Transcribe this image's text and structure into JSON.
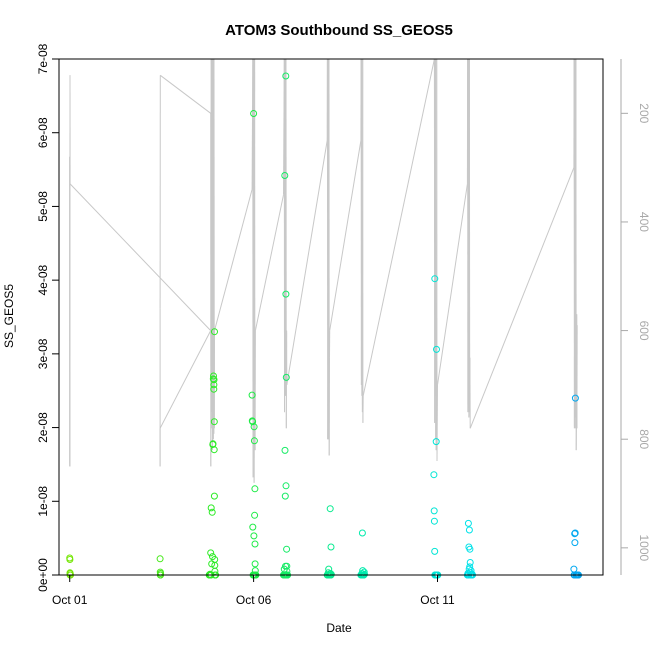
{
  "chart_data": {
    "type": "scatter",
    "title": "ATOM3 Southbound SS_GEOS5",
    "xlabel": "Date",
    "ylabel": "SS_GEOS5",
    "xlim": [
      "2016-09-30T17:00",
      "2016-10-15T12:00"
    ],
    "ylim": [
      0,
      7e-08
    ],
    "x_ticks": [
      {
        "date": "2016-10-01",
        "label": "Oct 01"
      },
      {
        "date": "2016-10-06",
        "label": "Oct 06"
      },
      {
        "date": "2016-10-11",
        "label": "Oct 11"
      }
    ],
    "y_ticks": [
      {
        "value": 0,
        "label": "0e+00"
      },
      {
        "value": 1e-08,
        "label": "1e-08"
      },
      {
        "value": 2e-08,
        "label": "2e-08"
      },
      {
        "value": 3e-08,
        "label": "3e-08"
      },
      {
        "value": 4e-08,
        "label": "4e-08"
      },
      {
        "value": 5e-08,
        "label": "5e-08"
      },
      {
        "value": 6e-08,
        "label": "6e-08"
      },
      {
        "value": 7e-08,
        "label": "7e-08"
      }
    ],
    "right_axis": {
      "ylim": [
        1050,
        100
      ],
      "reversed": true,
      "ticks": [
        {
          "value": 200,
          "label": "200"
        },
        {
          "value": 400,
          "label": "400"
        },
        {
          "value": 600,
          "label": "600"
        },
        {
          "value": 800,
          "label": "800"
        },
        {
          "value": 1000,
          "label": "1000"
        }
      ],
      "color": "#a9a9a9"
    },
    "grid": false,
    "point_style": "open circle, colour shifts green to cyan to blue along the time axis",
    "points": [
      [
        "2016-10-01T00:00",
        2.3e-09
      ],
      [
        "2016-10-01T00:05",
        2.1e-09
      ],
      [
        "2016-10-01T00:10",
        3e-10
      ],
      [
        "2016-10-01T00:15",
        0
      ],
      [
        "2016-10-01T00:20",
        2e-10
      ],
      [
        "2016-10-01T00:30",
        0
      ],
      [
        "2016-10-03T11:00",
        2.2e-09
      ],
      [
        "2016-10-03T11:05",
        4e-10
      ],
      [
        "2016-10-03T11:10",
        0
      ],
      [
        "2016-10-03T11:15",
        0
      ],
      [
        "2016-10-03T11:20",
        2e-10
      ],
      [
        "2016-10-04T19:00",
        0
      ],
      [
        "2016-10-04T19:10",
        0
      ],
      [
        "2016-10-04T19:20",
        0
      ],
      [
        "2016-10-04T19:30",
        1e-10
      ],
      [
        "2016-10-04T19:40",
        0
      ],
      [
        "2016-10-04T19:50",
        0
      ],
      [
        "2016-10-04T20:00",
        0
      ],
      [
        "2016-10-04T20:10",
        0
      ],
      [
        "2016-10-04T20:00",
        3e-09
      ],
      [
        "2016-10-04T20:20",
        9.1e-09
      ],
      [
        "2016-10-04T20:40",
        1.5e-09
      ],
      [
        "2016-10-04T21:00",
        8.5e-09
      ],
      [
        "2016-10-04T21:10",
        2.5e-09
      ],
      [
        "2016-10-04T21:20",
        1.77e-08
      ],
      [
        "2016-10-04T21:30",
        1.78e-08
      ],
      [
        "2016-10-04T21:40",
        2.66e-08
      ],
      [
        "2016-10-04T21:50",
        2.7e-08
      ],
      [
        "2016-10-04T22:00",
        2.52e-08
      ],
      [
        "2016-10-04T22:05",
        2.58e-08
      ],
      [
        "2016-10-04T22:10",
        2.65e-08
      ],
      [
        "2016-10-04T22:15",
        1.7e-08
      ],
      [
        "2016-10-04T22:20",
        2.08e-08
      ],
      [
        "2016-10-04T22:25",
        1.07e-08
      ],
      [
        "2016-10-04T22:30",
        3.3e-08
      ],
      [
        "2016-10-04T22:35",
        2.1e-09
      ],
      [
        "2016-10-04T22:40",
        1.3e-09
      ],
      [
        "2016-10-04T22:45",
        5e-10
      ],
      [
        "2016-10-04T22:50",
        0
      ],
      [
        "2016-10-04T23:00",
        0
      ],
      [
        "2016-10-04T23:10",
        0
      ],
      [
        "2016-10-05T23:00",
        2.44e-08
      ],
      [
        "2016-10-05T23:10",
        2.09e-08
      ],
      [
        "2016-10-05T23:20",
        2.08e-08
      ],
      [
        "2016-10-05T23:30",
        6.5e-09
      ],
      [
        "2016-10-06T00:00",
        6.26e-08
      ],
      [
        "2016-10-06T00:10",
        5.3e-09
      ],
      [
        "2016-10-06T00:20",
        2.01e-08
      ],
      [
        "2016-10-06T00:30",
        1.82e-08
      ],
      [
        "2016-10-06T00:40",
        8.1e-09
      ],
      [
        "2016-10-06T00:50",
        1.17e-08
      ],
      [
        "2016-10-06T00:55",
        4.2e-09
      ],
      [
        "2016-10-06T01:00",
        1.5e-09
      ],
      [
        "2016-10-06T01:05",
        6e-10
      ],
      [
        "2016-10-05T23:40",
        0
      ],
      [
        "2016-10-05T23:50",
        0
      ],
      [
        "2016-10-06T00:05",
        0
      ],
      [
        "2016-10-06T00:15",
        0
      ],
      [
        "2016-10-06T00:25",
        0
      ],
      [
        "2016-10-06T00:35",
        0
      ],
      [
        "2016-10-06T00:45",
        0
      ],
      [
        "2016-10-06T01:10",
        0
      ],
      [
        "2016-10-06T01:20",
        0
      ],
      [
        "2016-10-06T01:30",
        0
      ],
      [
        "2016-10-06T20:00",
        8e-10
      ],
      [
        "2016-10-06T20:20",
        5.42e-08
      ],
      [
        "2016-10-06T20:30",
        1.69e-08
      ],
      [
        "2016-10-06T20:40",
        1.07e-08
      ],
      [
        "2016-10-06T20:50",
        1.2e-09
      ],
      [
        "2016-10-06T21:00",
        6.77e-08
      ],
      [
        "2016-10-06T21:05",
        3.81e-08
      ],
      [
        "2016-10-06T21:10",
        1.21e-08
      ],
      [
        "2016-10-06T21:20",
        2.68e-08
      ],
      [
        "2016-10-06T21:30",
        3.5e-09
      ],
      [
        "2016-10-06T21:40",
        1.2e-09
      ],
      [
        "2016-10-06T21:45",
        5e-10
      ],
      [
        "2016-10-06T19:30",
        0
      ],
      [
        "2016-10-06T19:45",
        0
      ],
      [
        "2016-10-06T20:05",
        0
      ],
      [
        "2016-10-06T20:15",
        0
      ],
      [
        "2016-10-06T20:25",
        0
      ],
      [
        "2016-10-06T20:35",
        0
      ],
      [
        "2016-10-06T20:45",
        0
      ],
      [
        "2016-10-06T20:55",
        0
      ],
      [
        "2016-10-06T21:15",
        0
      ],
      [
        "2016-10-06T21:25",
        0
      ],
      [
        "2016-10-06T21:35",
        0
      ],
      [
        "2016-10-06T21:50",
        0
      ],
      [
        "2016-10-06T22:00",
        0
      ],
      [
        "2016-10-06T22:10",
        0
      ],
      [
        "2016-10-08T00:00",
        0
      ],
      [
        "2016-10-08T00:15",
        0
      ],
      [
        "2016-10-08T00:30",
        0
      ],
      [
        "2016-10-08T00:45",
        3e-10
      ],
      [
        "2016-10-08T01:00",
        8e-10
      ],
      [
        "2016-10-08T01:15",
        0
      ],
      [
        "2016-10-08T01:30",
        0
      ],
      [
        "2016-10-08T01:45",
        0
      ],
      [
        "2016-10-08T02:00",
        0
      ],
      [
        "2016-10-08T02:10",
        2e-10
      ],
      [
        "2016-10-08T02:20",
        0
      ],
      [
        "2016-10-08T02:30",
        0
      ],
      [
        "2016-10-08T02:40",
        1e-10
      ],
      [
        "2016-10-08T02:00",
        9e-09
      ],
      [
        "2016-10-08T02:30",
        3.8e-09
      ],
      [
        "2016-10-08T22:00",
        0
      ],
      [
        "2016-10-08T22:20",
        0
      ],
      [
        "2016-10-08T22:40",
        2e-10
      ],
      [
        "2016-10-08T23:00",
        0
      ],
      [
        "2016-10-08T23:10",
        6e-10
      ],
      [
        "2016-10-08T23:20",
        0
      ],
      [
        "2016-10-08T23:30",
        0
      ],
      [
        "2016-10-08T23:40",
        0
      ],
      [
        "2016-10-08T23:50",
        0
      ],
      [
        "2016-10-09T00:00",
        0
      ],
      [
        "2016-10-09T00:10",
        4e-10
      ],
      [
        "2016-10-09T00:20",
        1e-10
      ],
      [
        "2016-10-08T23:00",
        5.7e-09
      ],
      [
        "2016-10-10T21:40",
        1.36e-08
      ],
      [
        "2016-10-10T21:50",
        8.7e-09
      ],
      [
        "2016-10-10T22:00",
        7.3e-09
      ],
      [
        "2016-10-10T22:10",
        3.2e-09
      ],
      [
        "2016-10-10T22:15",
        4.02e-08
      ],
      [
        "2016-10-10T22:20",
        0
      ],
      [
        "2016-10-10T22:30",
        0
      ],
      [
        "2016-10-10T22:40",
        0
      ],
      [
        "2016-10-10T22:50",
        0
      ],
      [
        "2016-10-10T23:00",
        0
      ],
      [
        "2016-10-10T23:10",
        1.81e-08
      ],
      [
        "2016-10-10T23:20",
        3.06e-08
      ],
      [
        "2016-10-10T23:30",
        0
      ],
      [
        "2016-10-10T23:40",
        0
      ],
      [
        "2016-10-10T23:50",
        0
      ],
      [
        "2016-10-11T00:00",
        0
      ],
      [
        "2016-10-11T00:10",
        0
      ],
      [
        "2016-10-11T19:30",
        0
      ],
      [
        "2016-10-11T19:40",
        0
      ],
      [
        "2016-10-11T19:50",
        2e-10
      ],
      [
        "2016-10-11T20:00",
        0
      ],
      [
        "2016-10-11T20:10",
        7e-09
      ],
      [
        "2016-10-11T20:20",
        0
      ],
      [
        "2016-10-11T20:30",
        3.8e-09
      ],
      [
        "2016-10-11T20:40",
        8e-10
      ],
      [
        "2016-10-11T20:50",
        6.1e-09
      ],
      [
        "2016-10-11T21:00",
        1.1e-09
      ],
      [
        "2016-10-11T21:10",
        3.5e-09
      ],
      [
        "2016-10-11T21:20",
        1.7e-09
      ],
      [
        "2016-10-11T21:30",
        3e-10
      ],
      [
        "2016-10-11T21:40",
        0
      ],
      [
        "2016-10-11T21:50",
        6e-10
      ],
      [
        "2016-10-11T22:00",
        0
      ],
      [
        "2016-10-11T22:10",
        0
      ],
      [
        "2016-10-11T22:20",
        0
      ],
      [
        "2016-10-11T22:30",
        0
      ],
      [
        "2016-10-11T22:40",
        1e-10
      ],
      [
        "2016-10-11T22:50",
        0
      ],
      [
        "2016-10-14T17:00",
        8e-10
      ],
      [
        "2016-10-14T17:10",
        0
      ],
      [
        "2016-10-14T17:20",
        0
      ],
      [
        "2016-10-14T17:30",
        5.6e-09
      ],
      [
        "2016-10-14T17:40",
        4.4e-09
      ],
      [
        "2016-10-14T17:50",
        5.7e-09
      ],
      [
        "2016-10-14T18:00",
        2.4e-08
      ],
      [
        "2016-10-14T18:10",
        0
      ],
      [
        "2016-10-14T18:20",
        0
      ],
      [
        "2016-10-14T18:30",
        0
      ],
      [
        "2016-10-14T18:40",
        0
      ],
      [
        "2016-10-14T18:50",
        0
      ],
      [
        "2016-10-14T19:00",
        0
      ],
      [
        "2016-10-14T19:10",
        0
      ],
      [
        "2016-10-14T19:20",
        0
      ],
      [
        "2016-10-14T19:30",
        0
      ],
      [
        "2016-10-14T19:40",
        0
      ],
      [
        "2016-10-14T19:50",
        0
      ],
      [
        "2016-10-14T20:00",
        0
      ]
    ],
    "pressure_series": {
      "name": "",
      "color": "#c8c8c8",
      "points": [
        [
          "2016-10-01T00:00",
          850
        ],
        [
          "2016-10-01T00:00",
          280
        ],
        [
          "2016-10-01T00:00",
          500
        ],
        [
          "2016-10-01T00:05",
          850
        ],
        [
          "2016-10-01T00:10",
          130
        ],
        [
          "2016-10-01T00:15",
          330
        ],
        [
          "2016-10-04T20:00",
          600
        ],
        [
          "2016-10-03T11:00",
          780
        ],
        [
          "2016-10-03T11:00",
          850
        ],
        [
          "2016-10-03T11:00",
          560
        ],
        [
          "2016-10-03T11:05",
          130
        ],
        [
          "2016-10-04T20:00",
          200
        ],
        [
          "2016-10-04T20:05",
          850
        ],
        [
          "2016-10-04T20:10",
          770
        ],
        [
          "2016-10-04T20:20",
          100
        ],
        [
          "2016-10-04T20:30",
          750
        ],
        [
          "2016-10-04T20:40",
          600
        ],
        [
          "2016-10-04T20:50",
          100
        ],
        [
          "2016-10-04T21:00",
          780
        ],
        [
          "2016-10-04T21:05",
          100
        ],
        [
          "2016-10-04T21:10",
          820
        ],
        [
          "2016-10-04T21:20",
          600
        ],
        [
          "2016-10-04T21:30",
          100
        ],
        [
          "2016-10-04T21:40",
          800
        ],
        [
          "2016-10-04T21:50",
          100
        ],
        [
          "2016-10-04T22:00",
          790
        ],
        [
          "2016-10-04T22:10",
          100
        ],
        [
          "2016-10-04T22:20",
          780
        ],
        [
          "2016-10-04T22:30",
          600
        ],
        [
          "2016-10-05T23:00",
          340
        ],
        [
          "2016-10-05T23:30",
          100
        ],
        [
          "2016-10-05T23:35",
          870
        ],
        [
          "2016-10-05T23:40",
          770
        ],
        [
          "2016-10-05T23:50",
          100
        ],
        [
          "2016-10-06T00:00",
          800
        ],
        [
          "2016-10-06T00:10",
          100
        ],
        [
          "2016-10-06T00:20",
          880
        ],
        [
          "2016-10-06T00:30",
          700
        ],
        [
          "2016-10-06T00:40",
          100
        ],
        [
          "2016-10-06T00:50",
          760
        ],
        [
          "2016-10-06T01:00",
          820
        ],
        [
          "2016-10-06T01:10",
          600
        ],
        [
          "2016-10-06T19:30",
          350
        ],
        [
          "2016-10-06T20:00",
          100
        ],
        [
          "2016-10-06T20:10",
          750
        ],
        [
          "2016-10-06T20:20",
          100
        ],
        [
          "2016-10-06T20:30",
          720
        ],
        [
          "2016-10-06T20:40",
          620
        ],
        [
          "2016-10-06T20:50",
          100
        ],
        [
          "2016-10-06T21:00",
          720
        ],
        [
          "2016-10-06T21:10",
          100
        ],
        [
          "2016-10-06T21:20",
          780
        ],
        [
          "2016-10-06T21:30",
          600
        ],
        [
          "2016-10-06T21:40",
          700
        ],
        [
          "2016-10-08T00:00",
          250
        ],
        [
          "2016-10-08T00:10",
          100
        ],
        [
          "2016-10-08T00:20",
          800
        ],
        [
          "2016-10-08T00:30",
          700
        ],
        [
          "2016-10-08T00:40",
          100
        ],
        [
          "2016-10-08T00:50",
          800
        ],
        [
          "2016-10-08T01:00",
          590
        ],
        [
          "2016-10-08T01:10",
          100
        ],
        [
          "2016-10-08T01:20",
          830
        ],
        [
          "2016-10-08T01:30",
          650
        ],
        [
          "2016-10-08T01:40",
          600
        ],
        [
          "2016-10-08T22:00",
          250
        ],
        [
          "2016-10-08T22:10",
          100
        ],
        [
          "2016-10-08T22:20",
          700
        ],
        [
          "2016-10-08T22:30",
          100
        ],
        [
          "2016-10-08T22:40",
          720
        ],
        [
          "2016-10-08T22:50",
          380
        ],
        [
          "2016-10-08T23:00",
          750
        ],
        [
          "2016-10-08T23:10",
          100
        ],
        [
          "2016-10-08T23:20",
          770
        ],
        [
          "2016-10-08T23:30",
          720
        ],
        [
          "2016-10-10T22:00",
          100
        ],
        [
          "2016-10-10T22:10",
          770
        ],
        [
          "2016-10-10T22:20",
          100
        ],
        [
          "2016-10-10T22:30",
          720
        ],
        [
          "2016-10-10T22:40",
          100
        ],
        [
          "2016-10-10T22:50",
          800
        ],
        [
          "2016-10-10T23:00",
          600
        ],
        [
          "2016-10-10T23:10",
          820
        ],
        [
          "2016-10-10T23:20",
          700
        ],
        [
          "2016-10-10T23:30",
          100
        ],
        [
          "2016-10-10T23:40",
          840
        ],
        [
          "2016-10-11T00:00",
          700
        ],
        [
          "2016-10-11T19:30",
          330
        ],
        [
          "2016-10-11T19:40",
          100
        ],
        [
          "2016-10-11T19:50",
          750
        ],
        [
          "2016-10-11T20:00",
          100
        ],
        [
          "2016-10-11T20:10",
          720
        ],
        [
          "2016-10-11T20:20",
          100
        ],
        [
          "2016-10-11T20:30",
          760
        ],
        [
          "2016-10-11T20:40",
          700
        ],
        [
          "2016-10-11T20:50",
          100
        ],
        [
          "2016-10-11T21:00",
          750
        ],
        [
          "2016-10-11T21:10",
          650
        ],
        [
          "2016-10-11T21:20",
          780
        ],
        [
          "2016-10-14T17:00",
          300
        ],
        [
          "2016-10-14T17:10",
          100
        ],
        [
          "2016-10-14T17:20",
          780
        ],
        [
          "2016-10-14T17:30",
          100
        ],
        [
          "2016-10-14T17:40",
          720
        ],
        [
          "2016-10-14T17:50",
          760
        ],
        [
          "2016-10-14T18:00",
          100
        ],
        [
          "2016-10-14T18:10",
          780
        ],
        [
          "2016-10-14T18:20",
          100
        ],
        [
          "2016-10-14T18:30",
          820
        ],
        [
          "2016-10-14T18:40",
          780
        ],
        [
          "2016-10-14T18:50",
          570
        ],
        [
          "2016-10-14T19:00",
          780
        ],
        [
          "2016-10-14T19:10",
          590
        ]
      ]
    }
  }
}
